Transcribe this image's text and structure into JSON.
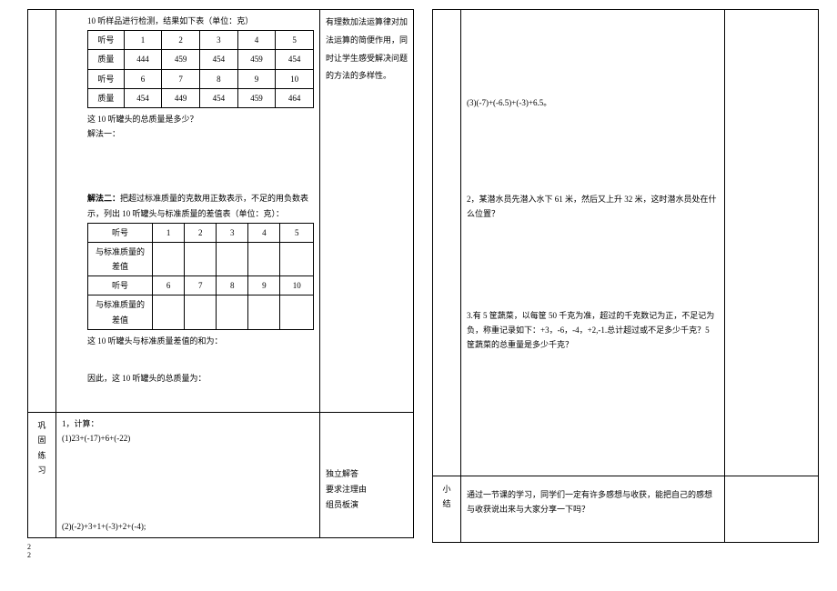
{
  "left": {
    "intro": "10 听样品进行检测，结果如下表（单位：克）",
    "table1": {
      "r1": [
        "听号",
        "1",
        "2",
        "3",
        "4",
        "5"
      ],
      "r2": [
        "质量",
        "444",
        "459",
        "454",
        "459",
        "454"
      ],
      "r3": [
        "听号",
        "6",
        "7",
        "8",
        "9",
        "10"
      ],
      "r4": [
        "质量",
        "454",
        "449",
        "454",
        "459",
        "464"
      ]
    },
    "q1": "这 10 听罐头的总质量是多少？",
    "m1": "解法一：",
    "m2_prefix": "解法二：",
    "m2_rest": "把超过标准质量的克数用正数表示，不足的用负数表示，列出 10 听罐头与标准质量的差值表（单位：克）：",
    "table2": {
      "r1": [
        "听号",
        "1",
        "2",
        "3",
        "4",
        "5"
      ],
      "r2": [
        "与标准质量的差值",
        "",
        "",
        "",
        "",
        ""
      ],
      "r3": [
        "听号",
        "6",
        "7",
        "8",
        "9",
        "10"
      ],
      "r4": [
        "与标准质量的差值",
        "",
        "",
        "",
        "",
        ""
      ]
    },
    "s1": "这 10 听罐头与标准质量差值的和为：",
    "s2": "因此，这 10 听罐头的总质量为：",
    "annot": "有理数加法运算律对加法运算的简便作用，同时让学生感受解决问题的方法的多样性。",
    "practice_label": "巩固练习",
    "p_intro": "1，计算：",
    "p1": "(1)23+(-17)+6+(-22)",
    "p2": "(2)(-2)+3+1+(-3)+2+(-4);",
    "p_annot": "独立解答\n要求注理由\n组员板演"
  },
  "right": {
    "p3": "(3)(-7)+(-6.5)+(-3)+6.5。",
    "q2": "2，某潜水员先潜入水下 61 米，然后又上升 32 米，这时潜水员处在什么位置？",
    "q3": "3.有 5 筐蔬菜，以每筐 50 千克为准，超过的千克数记为正，不足记为负，称重记录如下：+3，-6，-4，+2,-1.总计超过或不足多少千克？5 筐蔬菜的总重量是多少千克？",
    "summary_label": "小结",
    "summary": "通过一节课的学习，同学们一定有许多感想与收获，能把自己的感想与收获说出来与大家分享一下吗？"
  },
  "footer": "2\n2"
}
